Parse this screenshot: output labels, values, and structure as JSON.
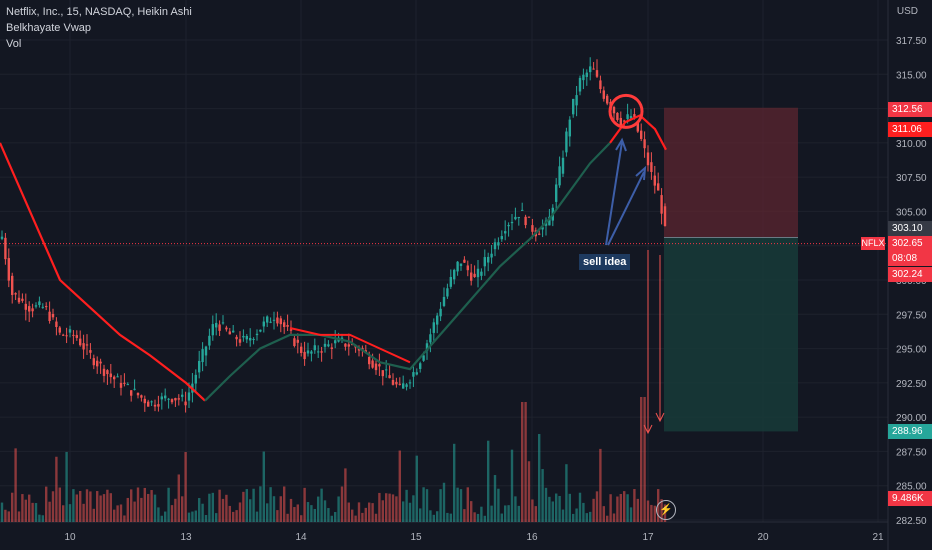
{
  "header": {
    "title": "Netflix, Inc., 15, NASDAQ, Heikin Ashi",
    "indicator": "Belkhayate Vwap",
    "volume": "Vol"
  },
  "axis": {
    "currency": "USD",
    "price_ticks": [
      "317.50",
      "315.00",
      "312.50",
      "310.00",
      "307.50",
      "305.00",
      "302.50",
      "300.00",
      "297.50",
      "295.00",
      "292.50",
      "290.00",
      "287.50",
      "285.00",
      "282.50"
    ],
    "time_ticks": [
      "10",
      "13",
      "14",
      "15",
      "16",
      "17",
      "20",
      "21"
    ]
  },
  "price_tags": {
    "target_top": "312.56",
    "vwap": "311.06",
    "entry": "303.10",
    "last": "302.65",
    "countdown": "08:08",
    "other": "302.24",
    "target_bottom": "288.96",
    "volume": "9.486K"
  },
  "symbol": "NFLX",
  "annotation": "sell idea",
  "colors": {
    "background": "#131722",
    "up": "#26a69a",
    "down": "#ef5350",
    "vwap_red": "#ff1f1f",
    "vwap_green": "#1e5f4e",
    "stop_zone": "#5c2530",
    "target_zone": "#173b38",
    "arrow_blue": "#3d5ea8"
  },
  "chart_data": {
    "type": "candlestick",
    "style": "Heikin Ashi",
    "symbol": "NFLX",
    "exchange": "NASDAQ",
    "interval": "15",
    "ylim": [
      282.5,
      318.5
    ],
    "x": [
      "10",
      "13",
      "14",
      "15",
      "16",
      "17",
      "20",
      "21"
    ],
    "key_levels": {
      "high": 316.4,
      "position_stop": 312.56,
      "position_entry": 303.1,
      "position_target": 288.96,
      "last_price": 302.65
    },
    "overlays": [
      "Belkhayate Vwap",
      "Vol"
    ]
  }
}
